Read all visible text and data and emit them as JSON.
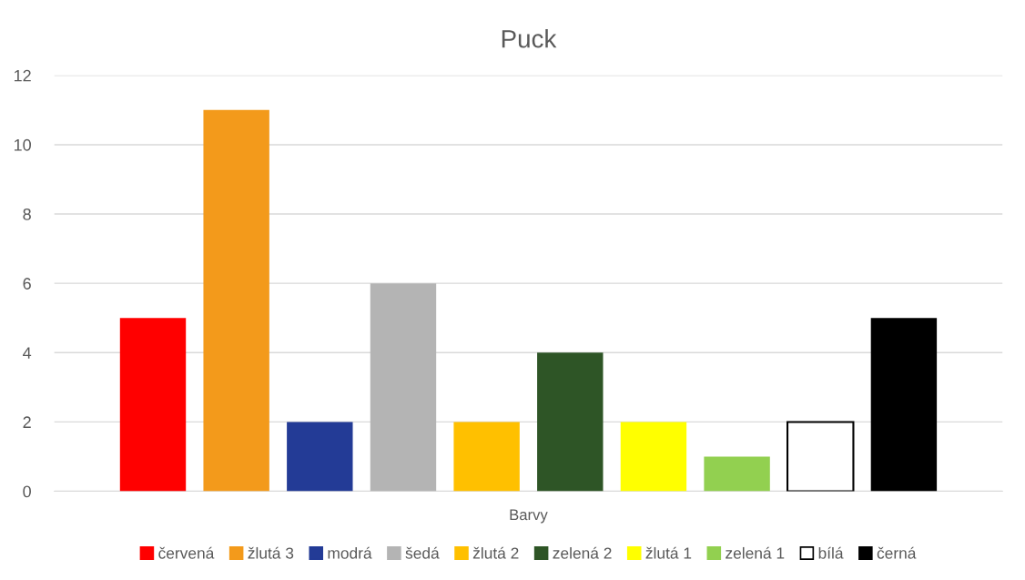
{
  "chart_data": {
    "type": "bar",
    "title": "Puck",
    "categories": [
      "Barvy"
    ],
    "series": [
      {
        "name": "červená",
        "color": "#ff0000",
        "values": [
          5
        ]
      },
      {
        "name": "žlutá 3",
        "color": "#f39a1b",
        "values": [
          11
        ]
      },
      {
        "name": "modrá",
        "color": "#233b96",
        "values": [
          2
        ]
      },
      {
        "name": "šedá",
        "color": "#b4b4b4",
        "values": [
          6
        ]
      },
      {
        "name": "žlutá 2",
        "color": "#ffc000",
        "values": [
          2
        ]
      },
      {
        "name": "zelená 2",
        "color": "#2e5526",
        "values": [
          4
        ]
      },
      {
        "name": "žlutá 1",
        "color": "#ffff00",
        "values": [
          2
        ]
      },
      {
        "name": "zelená 1",
        "color": "#92d050",
        "values": [
          1
        ]
      },
      {
        "name": "bílá",
        "color": "#ffffff",
        "values": [
          2
        ]
      },
      {
        "name": "černá",
        "color": "#000000",
        "values": [
          5
        ]
      }
    ],
    "ylim": [
      0,
      12
    ],
    "yticks": [
      0,
      2,
      4,
      6,
      8,
      10,
      12
    ],
    "grid": "y",
    "legend": "bottom"
  }
}
